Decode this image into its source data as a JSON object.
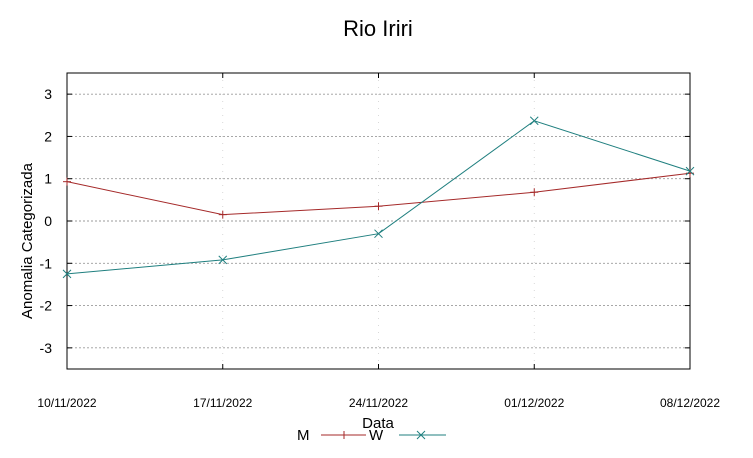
{
  "chart_data": {
    "type": "line",
    "title": "Rio Iriri",
    "xlabel": "Data",
    "ylabel": "Anomalia Categorizada",
    "categories": [
      "10/11/2022",
      "17/11/2022",
      "24/11/2022",
      "01/12/2022",
      "08/12/2022"
    ],
    "ylim": [
      -3.5,
      3.5
    ],
    "yticks": [
      "3",
      "2",
      "1",
      "0",
      "-1",
      "-2",
      "-3"
    ],
    "grid": true,
    "legend_position": "bottom-center",
    "series": [
      {
        "name": "M",
        "values": [
          0.93,
          0.15,
          0.35,
          0.68,
          1.13
        ],
        "color": "#a52a2a",
        "marker": "plus"
      },
      {
        "name": "W",
        "values": [
          -1.25,
          -0.92,
          -0.3,
          2.37,
          1.18
        ],
        "color": "#1f7f7f",
        "marker": "cross"
      }
    ]
  }
}
